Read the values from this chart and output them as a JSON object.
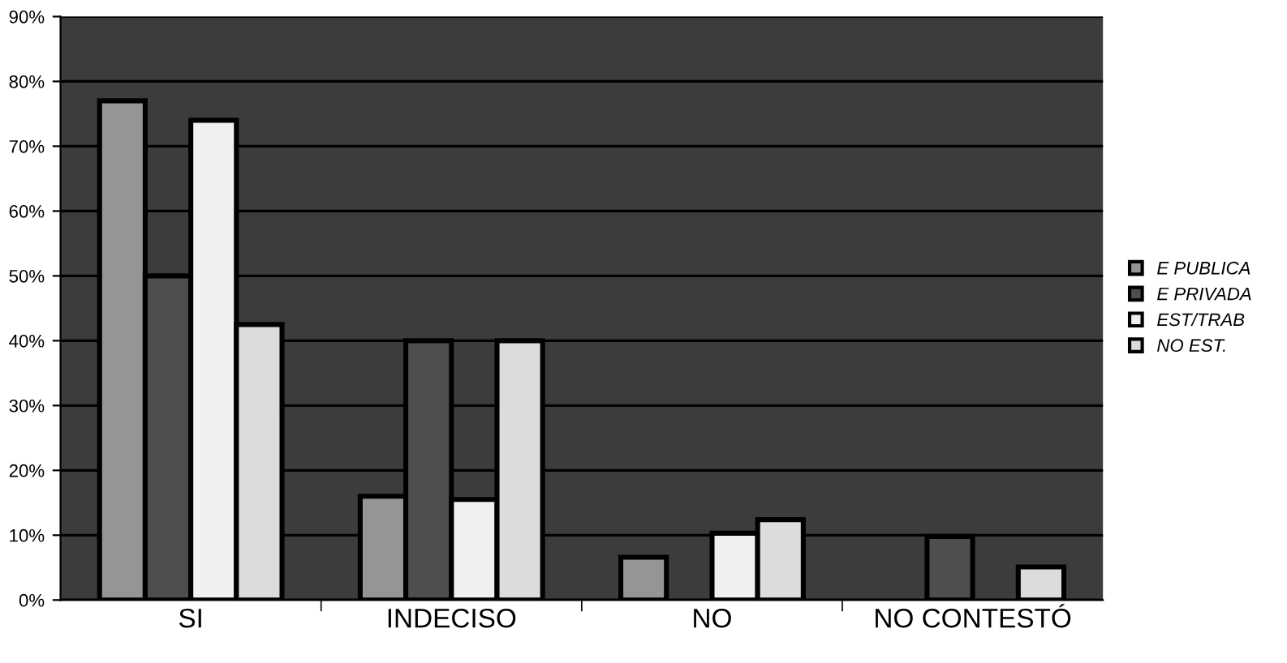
{
  "chart_data": {
    "type": "bar",
    "categories": [
      "SI",
      "INDECISO",
      "NO",
      "NO CONTESTÓ"
    ],
    "series": [
      {
        "name": "E PUBLICA",
        "color": "#959595",
        "values": [
          77,
          16,
          6.6,
          null
        ]
      },
      {
        "name": "E PRIVADA",
        "color": "#4e4e4e",
        "values": [
          50,
          40,
          null,
          9.8
        ]
      },
      {
        "name": "EST/TRAB",
        "color": "#f0f0f0",
        "values": [
          74,
          15.5,
          10.3,
          null
        ]
      },
      {
        "name": "NO EST.",
        "color": "#dcdcdc",
        "values": [
          42.5,
          40,
          12.4,
          5.1
        ]
      }
    ],
    "ylim": [
      0,
      90
    ],
    "yticks": [
      {
        "value": 0,
        "label": "0%"
      },
      {
        "value": 10,
        "label": "10%"
      },
      {
        "value": 20,
        "label": "20%"
      },
      {
        "value": 30,
        "label": "30%"
      },
      {
        "value": 40,
        "label": "40%"
      },
      {
        "value": 50,
        "label": "50%"
      },
      {
        "value": 60,
        "label": "60%"
      },
      {
        "value": 70,
        "label": "70%"
      },
      {
        "value": 80,
        "label": "80%"
      },
      {
        "value": 90,
        "label": "90%"
      }
    ],
    "grid": "y",
    "legend": "right"
  }
}
